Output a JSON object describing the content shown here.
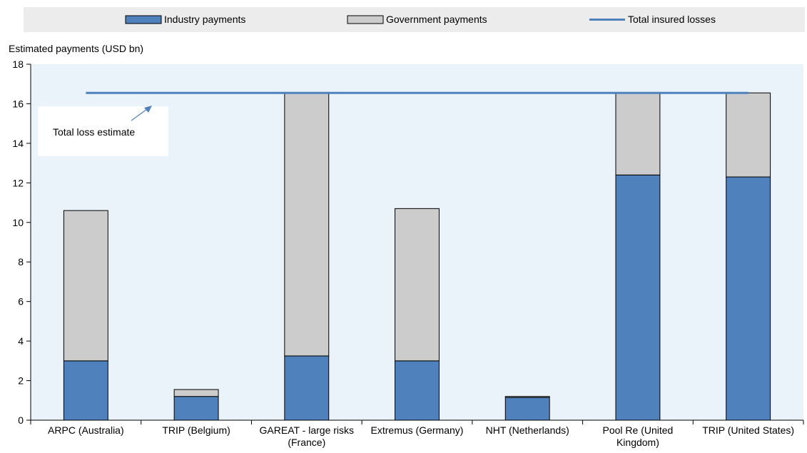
{
  "chart_data": {
    "type": "bar",
    "stacked": true,
    "ylabel": "Estimated payments (USD bn)",
    "ylim": [
      0,
      18
    ],
    "yticks": [
      0,
      2,
      4,
      6,
      8,
      10,
      12,
      14,
      16,
      18
    ],
    "grid": false,
    "legend_position": "top",
    "categories": [
      [
        "ARPC (Australia)"
      ],
      [
        "TRIP (Belgium)"
      ],
      [
        "GAREAT - large risks",
        "(France)"
      ],
      [
        "Extremus (Germany)"
      ],
      [
        "NHT (Netherlands)"
      ],
      [
        "Pool Re (United",
        "Kingdom)"
      ],
      [
        "TRIP (United States)"
      ]
    ],
    "series": [
      {
        "name": "Industry payments",
        "color": "#4f81bd",
        "values": [
          3.0,
          1.2,
          3.25,
          3.0,
          1.15,
          12.4,
          12.3
        ]
      },
      {
        "name": "Government payments",
        "color": "#cccccc",
        "values": [
          7.6,
          0.35,
          13.3,
          7.7,
          0.05,
          4.15,
          4.25
        ]
      }
    ],
    "line": {
      "name": "Total insured losses",
      "color": "#4f81bd",
      "value": 16.55
    },
    "annotation": {
      "text": "Total loss estimate"
    },
    "colors": {
      "plot_background": "#eaf3f9",
      "legend_background": "#ececec"
    }
  }
}
